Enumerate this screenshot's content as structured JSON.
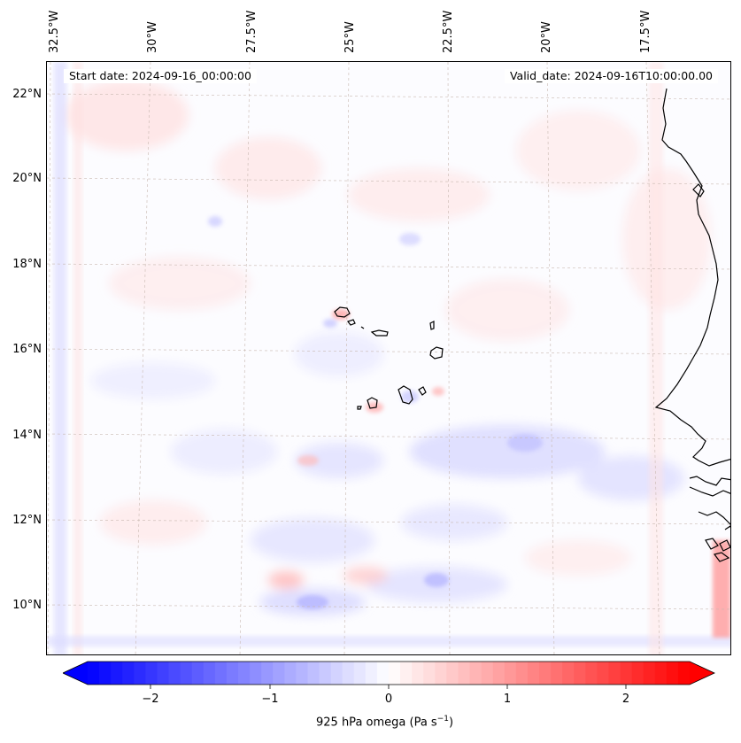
{
  "header": {
    "start_date": "Start date: 2024-09-16_00:00:00",
    "valid_date": "Valid_date: 2024-09-16T10:00:00.00"
  },
  "axes": {
    "lat_labels": [
      "22°N",
      "20°N",
      "18°N",
      "16°N",
      "14°N",
      "12°N",
      "10°N"
    ],
    "lon_labels": [
      "32.5°W",
      "30°W",
      "27.5°W",
      "25°W",
      "22.5°W",
      "20°W",
      "17.5°W"
    ],
    "gridlines": true
  },
  "colorbar": {
    "label": "925 hPa omega (Pa s",
    "label_sup": "−1",
    "label_close": ")",
    "ticks": [
      "−2",
      "−1",
      "0",
      "1",
      "2"
    ],
    "min": -2.6,
    "max": 2.6,
    "colors": {
      "negative": "#0000ff",
      "zero": "#ffffff",
      "positive": "#ff0000"
    },
    "extend": "both"
  },
  "map": {
    "field": "925 hPa omega",
    "features": [
      "cape-verde-islands",
      "west-africa-coastline"
    ]
  }
}
